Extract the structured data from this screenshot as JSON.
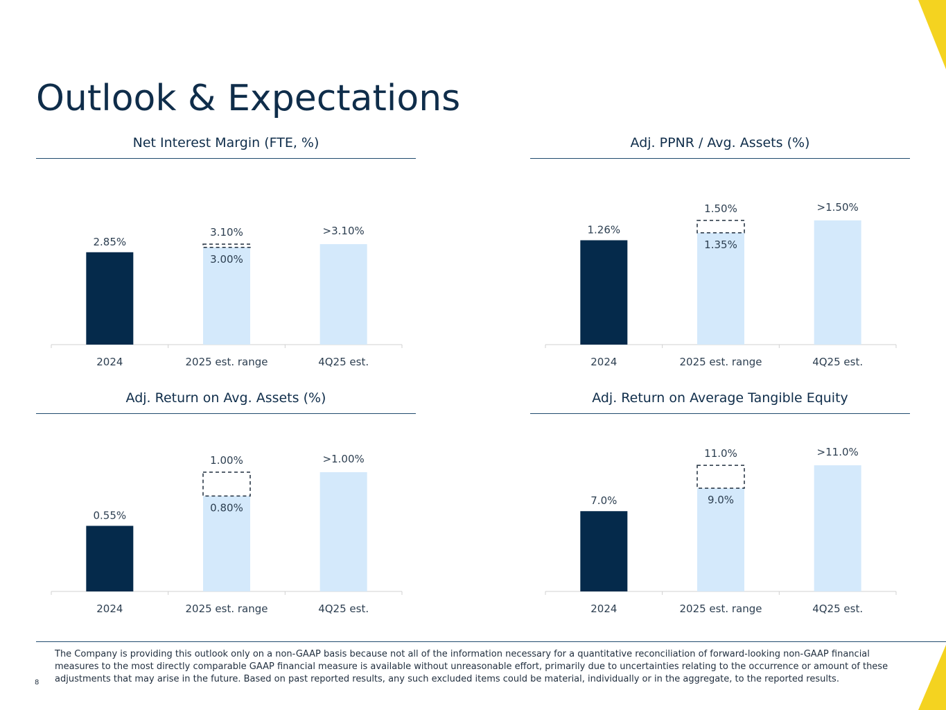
{
  "page": {
    "title": "Outlook & Expectations",
    "page_number": "8",
    "footnote": "The Company is providing this outlook only on a non-GAAP basis because not all of the information necessary for a quantitative reconciliation of forward-looking non-GAAP financial measures to the most directly comparable GAAP financial measure is available without unreasonable effort, primarily due to uncertainties relating to the occurrence or amount of these adjustments that may arise in the future. Based on past reported results, any such excluded items could be material, individually or in the aggregate, to the reported results.",
    "colors": {
      "dark_navy": "#052a4b",
      "light_blue": "#d4e9fb",
      "accent_yellow": "#f4d320",
      "title_navy": "#0f2d4a"
    }
  },
  "chart_data": [
    {
      "type": "bar",
      "title": "Net Interest Margin (FTE, %)",
      "categories": [
        "2024",
        "2025 est. range",
        "4Q25 est."
      ],
      "values": [
        2.85,
        3.0,
        3.1
      ],
      "range_high": 3.1,
      "labels": [
        "2.85%",
        "3.00%",
        ">3.10%"
      ],
      "range_high_label": "3.10%",
      "ylim": [
        0,
        4.6
      ]
    },
    {
      "type": "bar",
      "title": "Adj. PPNR / Avg. Assets (%)",
      "categories": [
        "2024",
        "2025 est. range",
        "4Q25 est."
      ],
      "values": [
        1.26,
        1.35,
        1.5
      ],
      "range_high": 1.5,
      "labels": [
        "1.26%",
        "1.35%",
        ">1.50%"
      ],
      "range_high_label": "1.50%",
      "ylim": [
        0,
        1.8
      ]
    },
    {
      "type": "bar",
      "title": "Adj. Return on Avg. Assets (%)",
      "categories": [
        "2024",
        "2025 est. range",
        "4Q25 est."
      ],
      "values": [
        0.55,
        0.8,
        1.0
      ],
      "range_high": 1.0,
      "labels": [
        "0.55%",
        "0.80%",
        ">1.00%"
      ],
      "range_high_label": "1.00%",
      "ylim": [
        0,
        1.25
      ]
    },
    {
      "type": "bar",
      "title": "Adj. Return on Average Tangible Equity",
      "categories": [
        "2024",
        "2025 est. range",
        "4Q25 est."
      ],
      "values": [
        7.0,
        9.0,
        11.0
      ],
      "range_high": 11.0,
      "labels": [
        "7.0%",
        "9.0%",
        ">11.0%"
      ],
      "range_high_label": "11.0%",
      "ylim": [
        0,
        13.0
      ]
    }
  ]
}
